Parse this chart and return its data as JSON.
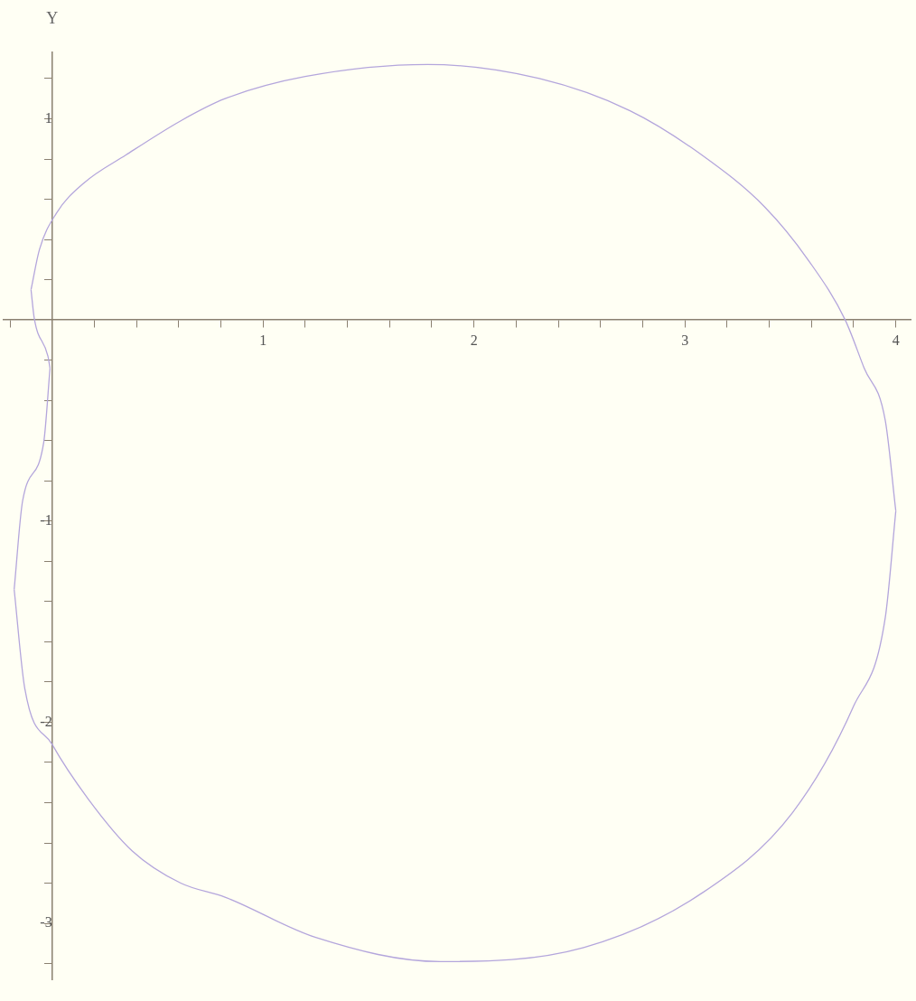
{
  "chart_data": {
    "type": "line",
    "ylabel": "Y",
    "xlim": [
      -0.23,
      4.07
    ],
    "ylim": [
      -3.28,
      1.33
    ],
    "xticks": [
      {
        "value": -0.2,
        "label": null
      },
      {
        "value": 0.2,
        "label": null
      },
      {
        "value": 0.4,
        "label": null
      },
      {
        "value": 0.6,
        "label": null
      },
      {
        "value": 0.8,
        "label": null
      },
      1,
      {
        "value": 1.2,
        "label": null
      },
      {
        "value": 1.4,
        "label": null
      },
      {
        "value": 1.6,
        "label": null
      },
      {
        "value": 1.8,
        "label": null
      },
      2,
      {
        "value": 2.2,
        "label": null
      },
      {
        "value": 2.4,
        "label": null
      },
      {
        "value": 2.6,
        "label": null
      },
      {
        "value": 2.8,
        "label": null
      },
      3,
      {
        "value": 3.2,
        "label": null
      },
      {
        "value": 3.4,
        "label": null
      },
      {
        "value": 3.6,
        "label": null
      },
      {
        "value": 3.8,
        "label": null
      },
      4
    ],
    "yticks": [
      {
        "value": -3.2,
        "label": null
      },
      -3,
      {
        "value": -2.8,
        "label": null
      },
      {
        "value": -2.6,
        "label": null
      },
      {
        "value": -2.4,
        "label": null
      },
      {
        "value": -2.2,
        "label": null
      },
      -2,
      {
        "value": -1.8,
        "label": null
      },
      {
        "value": -1.6,
        "label": null
      },
      {
        "value": -1.4,
        "label": null
      },
      {
        "value": -1.2,
        "label": null
      },
      -1,
      {
        "value": -0.8,
        "label": null
      },
      {
        "value": -0.6,
        "label": null
      },
      {
        "value": -0.4,
        "label": null
      },
      {
        "value": -0.2,
        "label": null
      },
      {
        "value": 0.2,
        "label": null
      },
      {
        "value": 0.4,
        "label": null
      },
      {
        "value": 0.6,
        "label": null
      },
      {
        "value": 0.8,
        "label": null
      },
      1,
      {
        "value": 1.2,
        "label": null
      }
    ],
    "grid": false,
    "legend": false,
    "marker": "none",
    "line_style": "solid",
    "series": [
      {
        "color": "#b4a6dc",
        "x": [
          -0.1,
          -0.06,
          0.02,
          0.15,
          0.35,
          0.61,
          0.82,
          1.2,
          1.78,
          2.31,
          2.74,
          3.08,
          3.38,
          3.59,
          3.76,
          3.85,
          3.95,
          4.0
        ],
        "values": [
          0.15,
          0.35,
          0.53,
          0.68,
          0.82,
          0.99,
          1.1,
          1.21,
          1.27,
          1.2,
          1.04,
          0.82,
          0.56,
          0.29,
          0,
          -0.24,
          -0.5,
          -0.95
        ]
      },
      {
        "color": "#b4a6dc",
        "x": [
          -0.1,
          -0.085,
          -0.02,
          -0.01
        ],
        "values": [
          0.15,
          0.01,
          -0.18,
          -0.24
        ]
      },
      {
        "color": "#b4a6dc",
        "x": [
          -0.18,
          -0.14,
          -0.04,
          -0.01
        ],
        "values": [
          -1.34,
          -0.9,
          -0.61,
          -0.24
        ]
      },
      {
        "color": "#b4a6dc",
        "x": [
          -0.18,
          -0.13,
          0,
          0.17,
          0.38,
          0.61,
          0.82,
          1.25,
          1.84,
          2.52,
          3.08,
          3.51,
          3.8,
          3.95,
          4.0
        ],
        "values": [
          -1.34,
          -1.83,
          -2.11,
          -2.38,
          -2.64,
          -2.8,
          -2.87,
          -3.07,
          -3.19,
          -3.12,
          -2.85,
          -2.45,
          -1.92,
          -1.48,
          -0.95
        ]
      }
    ]
  }
}
